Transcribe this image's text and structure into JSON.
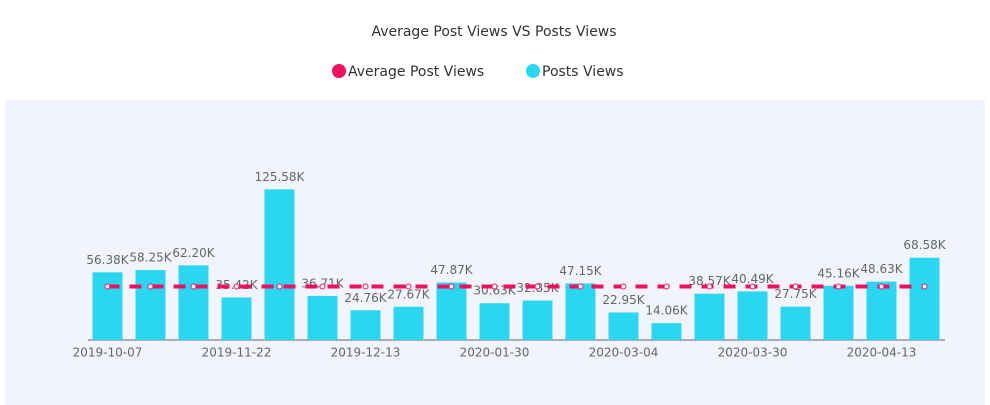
{
  "chart_data": {
    "type": "bar",
    "title": "Average Post Views VS Posts Views",
    "categories": [
      "2019-10-07",
      null,
      null,
      "2019-11-22",
      null,
      null,
      "2019-12-13",
      null,
      null,
      "2020-01-30",
      null,
      null,
      "2020-03-04",
      null,
      null,
      "2020-03-30",
      null,
      null,
      "2020-04-13",
      null
    ],
    "series": [
      {
        "name": "Average Post Views",
        "type": "line",
        "color": "#f0105f",
        "values": [
          44583,
          44583,
          44583,
          44583,
          44583,
          44583,
          44583,
          44583,
          44583,
          44583,
          44583,
          44583,
          44583,
          44583,
          44583,
          44583,
          44583,
          44583,
          44583,
          44583
        ]
      },
      {
        "name": "Posts Views",
        "type": "bar",
        "color": "#2ad6f0",
        "values": [
          56380,
          58250,
          62200,
          35420,
          125580,
          36710,
          24760,
          27670,
          47870,
          30630,
          32850,
          47150,
          22950,
          14060,
          38570,
          40490,
          27750,
          45160,
          48630,
          68580
        ],
        "value_labels": [
          "56.38K",
          "58.25K",
          "62.20K",
          "35.42K",
          "125.58K",
          "36.71K",
          "24.76K",
          "27.67K",
          "47.87K",
          "30.63K",
          "32.85K",
          "47.15K",
          "22.95K",
          "14.06K",
          "38.57K",
          "40.49K",
          "27.75K",
          "45.16K",
          "48.63K",
          "68.58K"
        ]
      }
    ],
    "ylim": [
      0,
      150000
    ],
    "legend": "top"
  }
}
